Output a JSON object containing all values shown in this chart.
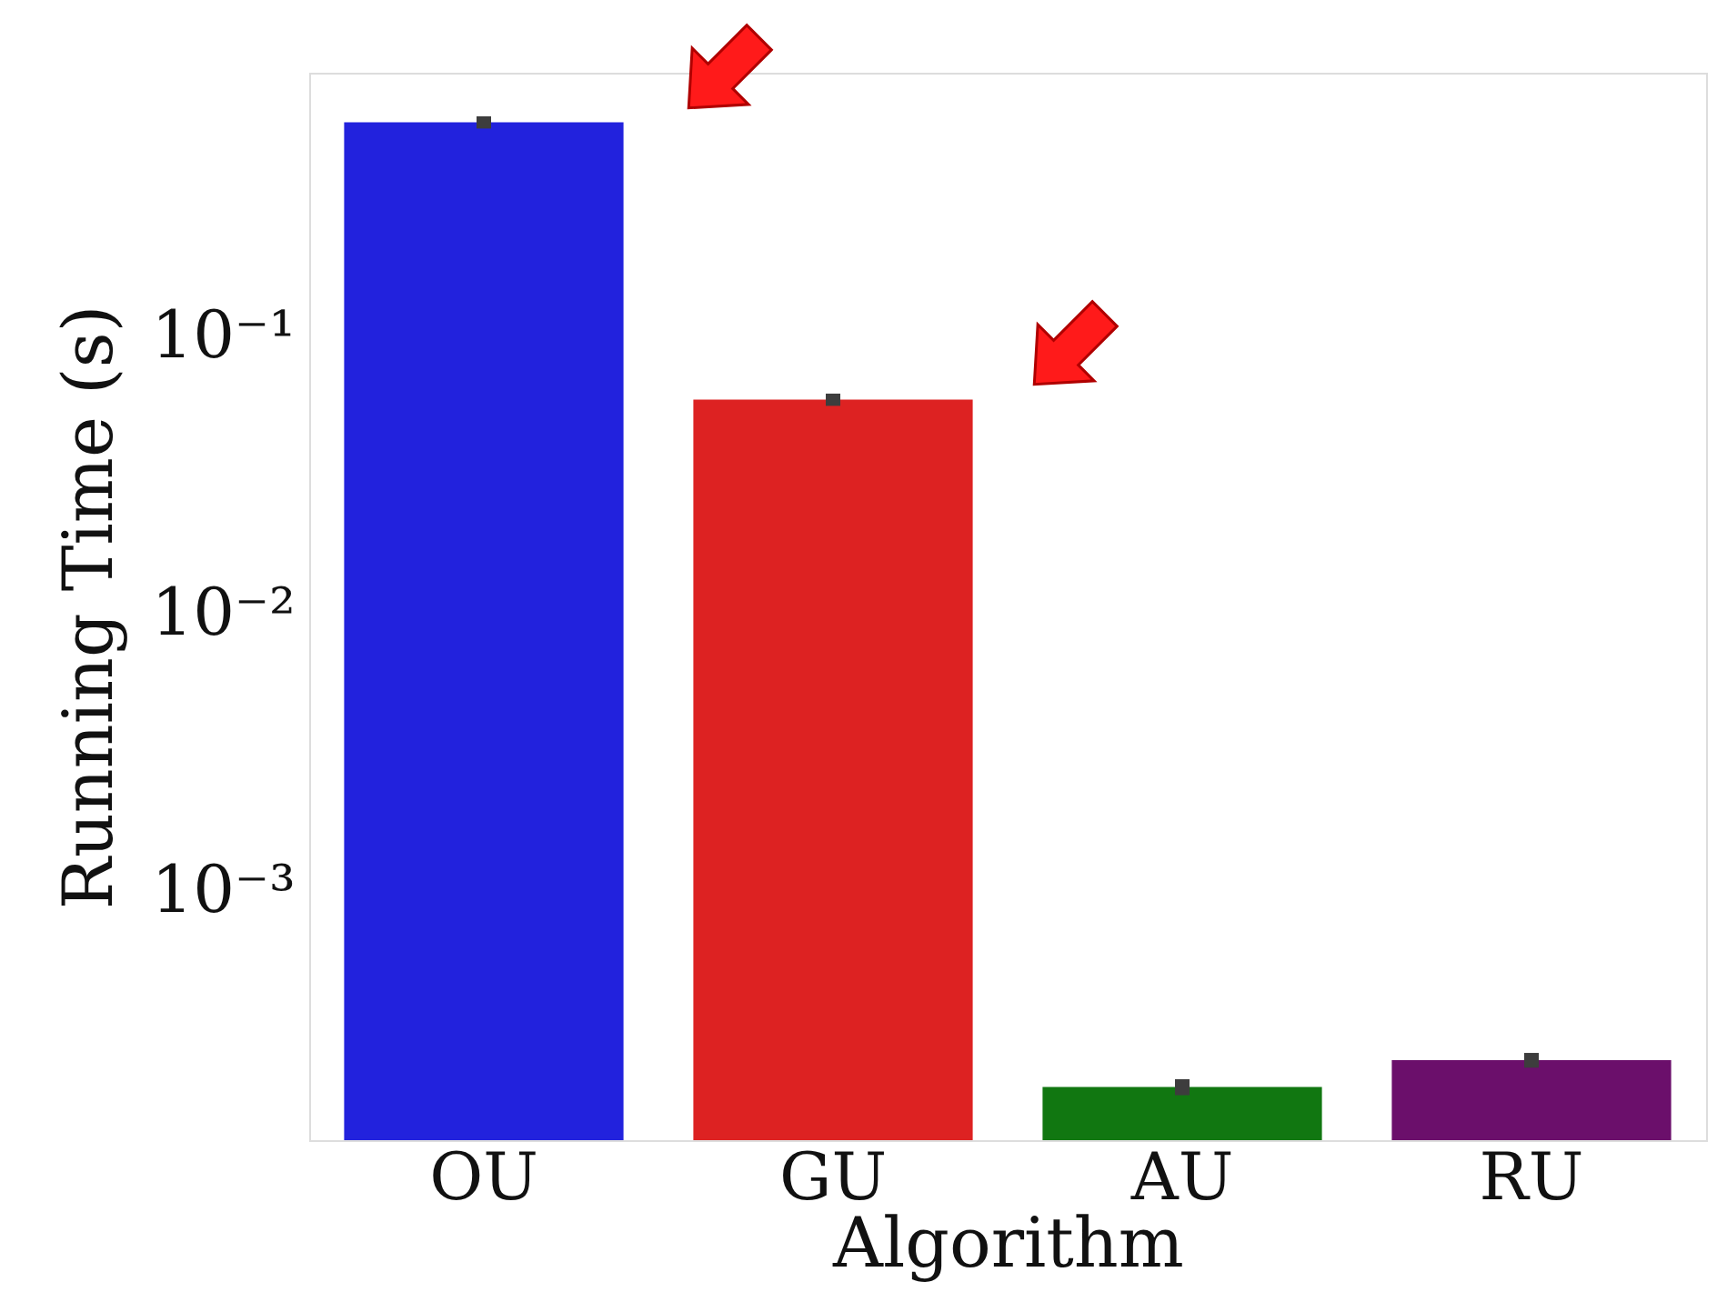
{
  "chart_data": {
    "type": "bar",
    "xlabel": "Algorithm",
    "ylabel": "Running Time (s)",
    "categories": [
      "OU",
      "GU",
      "AU",
      "RU"
    ],
    "values": [
      0.59,
      0.059,
      0.000196,
      0.000245
    ],
    "errors": [
      0.03,
      0.003,
      1.3e-05,
      1.5e-05
    ],
    "colors": [
      "#2222dd",
      "#dd2222",
      "#117711",
      "#6b0f6b"
    ],
    "log": true,
    "ylim": [
      0.000126,
      0.89
    ],
    "yticks": [
      {
        "value": 0.001,
        "label": "10⁻³"
      },
      {
        "value": 0.01,
        "label": "10⁻²"
      },
      {
        "value": 0.1,
        "label": "10⁻¹"
      }
    ],
    "grid": false,
    "legend": false
  }
}
